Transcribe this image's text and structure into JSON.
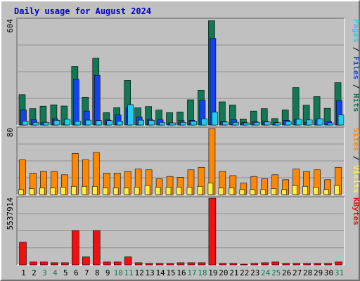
{
  "title": "Daily usage for August 2024",
  "colors": {
    "hits": "#117755",
    "files": "#1144ee",
    "pages": "#22ccee",
    "visits": "#ff8800",
    "sites": "#ffee44",
    "kbytes": "#ee1111",
    "title": "#0000cc",
    "weekend_day_label": "#117755",
    "weekday_day_label": "#000000",
    "panel_bg": "#c0c0c0"
  },
  "chart_data": [
    {
      "type": "bar",
      "name": "hits-files-pages",
      "ymax_label": "604",
      "ylim": [
        0,
        604
      ],
      "grid": true,
      "right_label_parts": [
        {
          "text": "Pages",
          "color": "#22ccee"
        },
        {
          "text": " / ",
          "color": "#000000"
        },
        {
          "text": "Files",
          "color": "#1144ee"
        },
        {
          "text": " / ",
          "color": "#000000"
        },
        {
          "text": "Hits",
          "color": "#117755"
        }
      ],
      "x": [
        1,
        2,
        3,
        4,
        5,
        6,
        7,
        8,
        9,
        10,
        11,
        12,
        13,
        14,
        15,
        16,
        17,
        18,
        19,
        20,
        21,
        22,
        23,
        24,
        25,
        26,
        27,
        28,
        29,
        30,
        31
      ],
      "series": [
        {
          "name": "Hits",
          "color": "#117755",
          "values": [
            174,
            94,
            108,
            116,
            109,
            336,
            160,
            383,
            71,
            100,
            256,
            99,
            106,
            86,
            71,
            75,
            145,
            200,
            598,
            133,
            115,
            35,
            80,
            94,
            37,
            87,
            215,
            114,
            163,
            96,
            243
          ]
        },
        {
          "name": "Files",
          "color": "#1144ee",
          "values": [
            87,
            30,
            16,
            36,
            8,
            262,
            80,
            285,
            29,
            58,
            98,
            46,
            34,
            30,
            12,
            25,
            27,
            142,
            496,
            21,
            30,
            14,
            20,
            22,
            14,
            27,
            34,
            15,
            28,
            20,
            139
          ]
        },
        {
          "name": "Pages",
          "color": "#22ccee",
          "values": [
            23,
            15,
            15,
            27,
            33,
            22,
            28,
            25,
            25,
            22,
            117,
            28,
            27,
            15,
            12,
            15,
            22,
            36,
            74,
            17,
            15,
            12,
            15,
            18,
            13,
            20,
            34,
            29,
            36,
            12,
            58
          ]
        }
      ]
    },
    {
      "type": "bar",
      "name": "visits-sites",
      "ymax_label": "80",
      "ylim": [
        0,
        80
      ],
      "grid": true,
      "right_label_parts": [
        {
          "text": "Sites",
          "color": "#ff8800"
        },
        {
          "text": " / ",
          "color": "#000000"
        },
        {
          "text": "Visits",
          "color": "#ffee44"
        }
      ],
      "x": [
        1,
        2,
        3,
        4,
        5,
        6,
        7,
        8,
        9,
        10,
        11,
        12,
        13,
        14,
        15,
        16,
        17,
        18,
        19,
        20,
        21,
        22,
        23,
        24,
        25,
        26,
        27,
        28,
        29,
        30,
        31
      ],
      "series": [
        {
          "name": "Visits",
          "color": "#ff8800",
          "values": [
            42,
            26,
            28,
            28,
            24,
            50,
            42,
            51,
            26,
            26,
            28,
            31,
            30,
            19,
            22,
            21,
            30,
            33,
            80,
            28,
            23,
            14,
            22,
            19,
            24,
            18,
            31,
            28,
            30,
            18,
            33
          ]
        },
        {
          "name": "Sites",
          "color": "#ffee44",
          "values": [
            6,
            7,
            8,
            8,
            9,
            10,
            10,
            10,
            8,
            8,
            8,
            9,
            11,
            9,
            9,
            9,
            9,
            10,
            14,
            8,
            8,
            6,
            6,
            6,
            7,
            6,
            11,
            10,
            9,
            6,
            11
          ]
        }
      ]
    },
    {
      "type": "bar",
      "name": "kbytes",
      "ymax_label": "5537914",
      "ylim": [
        0,
        5537914
      ],
      "grid": true,
      "right_label_parts": [
        {
          "text": "KBytes",
          "color": "#ee1111"
        }
      ],
      "x": [
        1,
        2,
        3,
        4,
        5,
        6,
        7,
        8,
        9,
        10,
        11,
        12,
        13,
        14,
        15,
        16,
        17,
        18,
        19,
        20,
        21,
        22,
        23,
        24,
        25,
        26,
        27,
        28,
        29,
        30,
        31
      ],
      "series": [
        {
          "name": "KBytes",
          "color": "#ee1111",
          "values": [
            1884000,
            239000,
            239000,
            180000,
            180000,
            2842000,
            658000,
            2842000,
            239000,
            239000,
            658000,
            180000,
            120000,
            120000,
            120000,
            180000,
            180000,
            180000,
            5537914,
            120000,
            120000,
            60000,
            120000,
            180000,
            239000,
            120000,
            120000,
            120000,
            120000,
            120000,
            239000
          ]
        }
      ]
    }
  ],
  "day_labels": [
    "1",
    "2",
    "3",
    "4",
    "5",
    "6",
    "7",
    "8",
    "9",
    "10",
    "11",
    "12",
    "13",
    "14",
    "15",
    "16",
    "17",
    "18",
    "19",
    "20",
    "21",
    "22",
    "23",
    "24",
    "25",
    "26",
    "27",
    "28",
    "29",
    "30",
    "31"
  ],
  "weekend_days": [
    3,
    4,
    10,
    11,
    17,
    18,
    24,
    25,
    31
  ]
}
